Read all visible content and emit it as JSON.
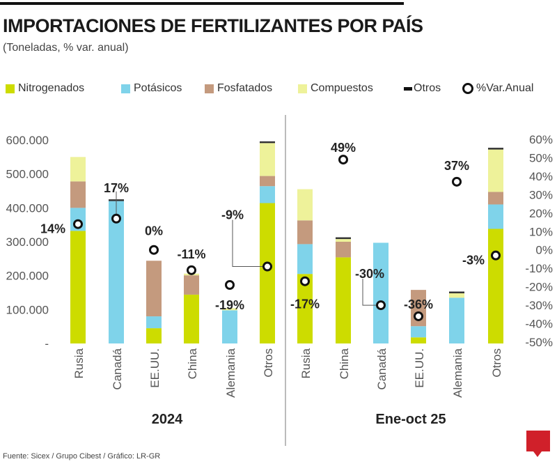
{
  "title": "IMPORTACIONES DE FERTILIZANTES POR PAÍS",
  "subtitle": "(Toneladas, % var. anual)",
  "footer": "Fuente: Sicex / Grupo Cibest / Gráfico: LR-GR",
  "logo": "LR",
  "legend": [
    {
      "label": "Nitrogenados",
      "color": "#cddc00"
    },
    {
      "label": "Potásicos",
      "color": "#7fd3ea"
    },
    {
      "label": "Fosfatados",
      "color": "#c49a7e"
    },
    {
      "label": "Compuestos",
      "color": "#eef29a"
    },
    {
      "label": "Otros",
      "color": "#333333"
    },
    {
      "label": "%Var.Anual",
      "color": "#111111"
    }
  ],
  "chart_data": [
    {
      "type": "bar",
      "stacked": true,
      "group_label": "2024",
      "categories": [
        "Rusia",
        "Canadá",
        "EE.UU.",
        "China",
        "Alemania",
        "Otros"
      ],
      "series": [
        {
          "name": "Nitrogenados",
          "values": [
            332000,
            0,
            45000,
            144000,
            0,
            414000
          ]
        },
        {
          "name": "Potásicos",
          "values": [
            68000,
            420000,
            35000,
            0,
            98000,
            50000
          ]
        },
        {
          "name": "Fosfatados",
          "values": [
            78000,
            0,
            164000,
            57000,
            0,
            30000
          ]
        },
        {
          "name": "Compuestos",
          "values": [
            72000,
            0,
            0,
            5000,
            6000,
            97000
          ]
        },
        {
          "name": "Otros",
          "values": [
            0,
            2000,
            0,
            0,
            0,
            4000
          ]
        }
      ],
      "line_series": {
        "name": "%Var.Anual",
        "values": [
          14,
          17,
          0,
          -11,
          -19,
          -9
        ],
        "labels": [
          "14%",
          "17%",
          "0%",
          "-11%",
          "-19%",
          "-9%"
        ]
      },
      "ylim": [
        0,
        600000
      ],
      "yticks": [
        "600.000",
        "500.000",
        "400.000",
        "300.000",
        "200.000",
        "100.000",
        "-"
      ],
      "y2lim": [
        -50,
        60
      ]
    },
    {
      "type": "bar",
      "stacked": true,
      "group_label": "Ene-oct 25",
      "categories": [
        "Rusia",
        "China",
        "Canadá",
        "EE.UU.",
        "Alemania",
        "Otros"
      ],
      "series": [
        {
          "name": "Nitrogenados",
          "values": [
            205000,
            254000,
            0,
            18000,
            0,
            338000
          ]
        },
        {
          "name": "Potásicos",
          "values": [
            88000,
            0,
            297000,
            33000,
            135000,
            72000
          ]
        },
        {
          "name": "Fosfatados",
          "values": [
            70000,
            46000,
            0,
            107000,
            0,
            37000
          ]
        },
        {
          "name": "Compuestos",
          "values": [
            92000,
            8000,
            0,
            0,
            13000,
            125000
          ]
        },
        {
          "name": "Otros",
          "values": [
            0,
            4000,
            0,
            0,
            2000,
            4000
          ]
        }
      ],
      "line_series": {
        "name": "%Var.Anual",
        "values": [
          -17,
          49,
          -30,
          -36,
          37,
          -3
        ],
        "labels": [
          "-17%",
          "49%",
          "-30%",
          "-36%",
          "37%",
          "-3%"
        ]
      },
      "ylim": [
        0,
        600000
      ],
      "y2lim": [
        -50,
        60
      ],
      "y2ticks": [
        "60%",
        "50%",
        "40%",
        "30%",
        "20%",
        "10%",
        "0%",
        "-10%",
        "-20%",
        "-30%",
        "-40%",
        "-50%"
      ]
    }
  ]
}
